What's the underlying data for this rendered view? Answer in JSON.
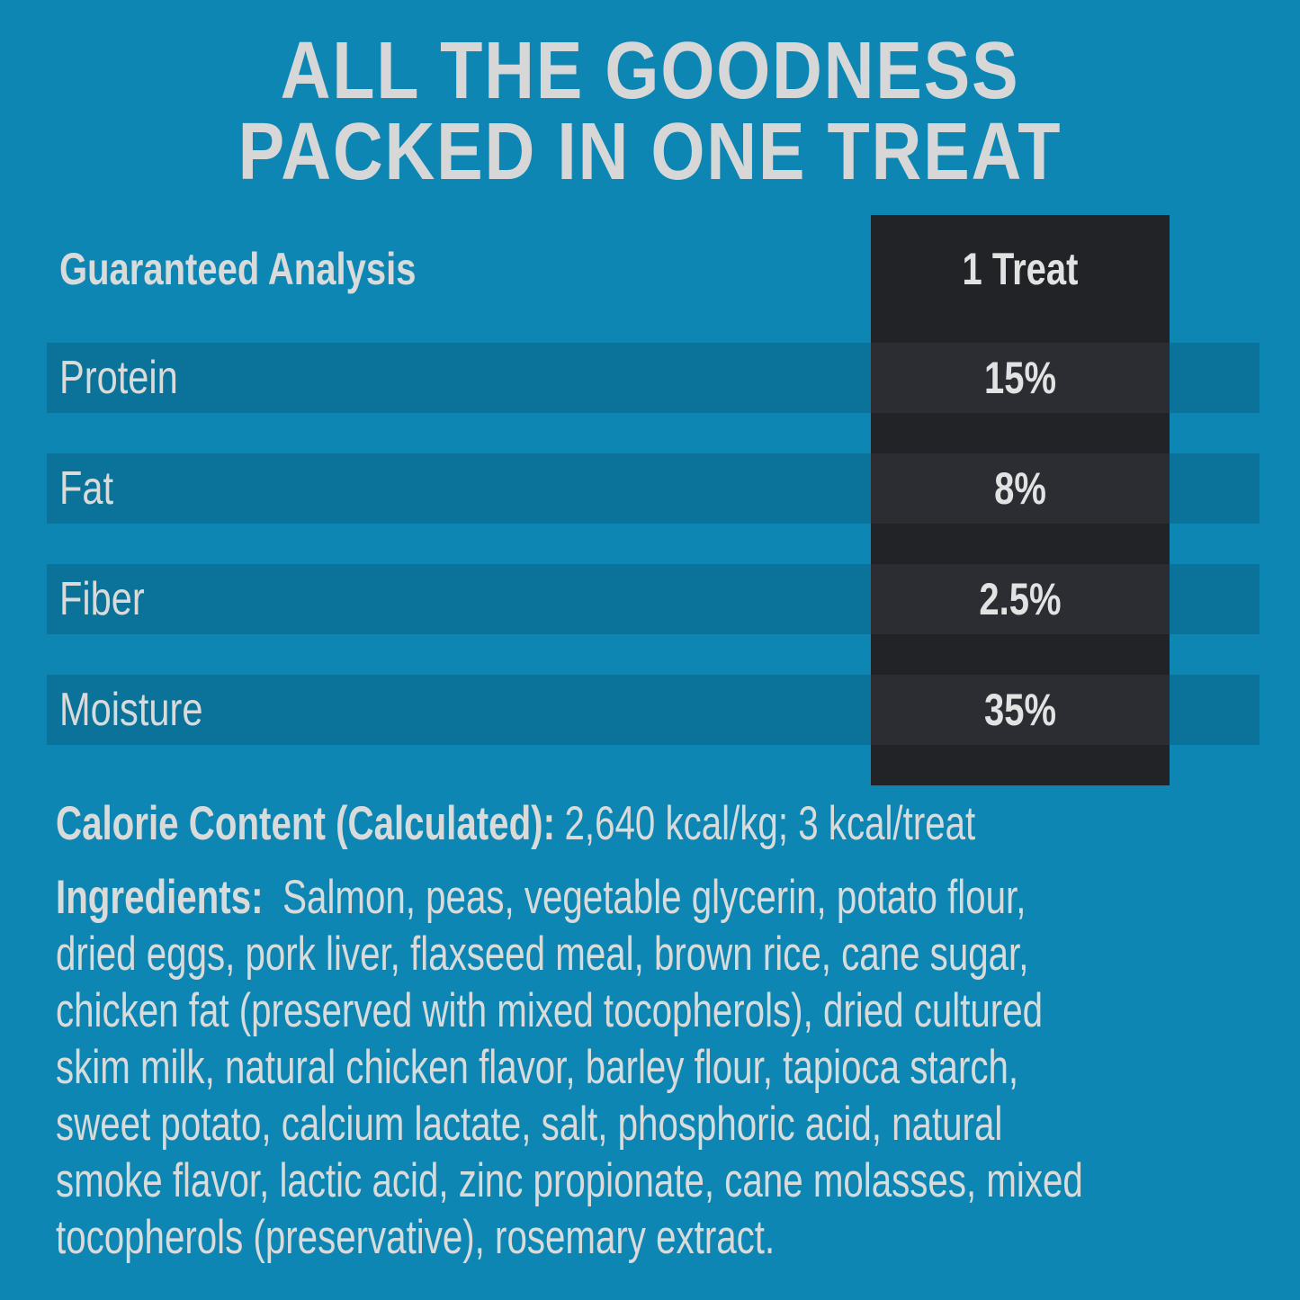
{
  "colors": {
    "background": "#0e86b3",
    "stripe": "#0b7299",
    "panel": "#212327",
    "panel_band": "#2b2d32",
    "text": "#d9dbdb",
    "title_text": "#d6d7d6",
    "value_text": "#e1e2e2"
  },
  "title": {
    "line1": "ALL THE GOODNESS",
    "line2": "PACKED IN ONE TREAT"
  },
  "analysis_table": {
    "header": {
      "label": "Guaranteed Analysis",
      "value_column": "1 Treat"
    },
    "rows": [
      {
        "label": "Protein",
        "value": "15%"
      },
      {
        "label": "Fat",
        "value": "8%"
      },
      {
        "label": "Fiber",
        "value": "2.5%"
      },
      {
        "label": "Moisture",
        "value": "35%"
      }
    ]
  },
  "calorie_content": {
    "label": "Calorie Content (Calculated):",
    "value": "2,640 kcal/kg; 3 kcal/treat"
  },
  "ingredients": {
    "label": "Ingredients:",
    "first_line_rest": "Salmon, peas, vegetable glycerin, potato flour,",
    "continuation_lines": [
      "dried eggs, pork liver, flaxseed meal, brown rice, cane sugar,",
      "chicken fat (preserved with mixed tocopherols), dried cultured",
      "skim milk, natural chicken flavor, barley flour, tapioca starch,",
      "sweet potato, calcium lactate, salt, phosphoric acid, natural",
      "smoke flavor, lactic acid, zinc propionate, cane molasses, mixed",
      "tocopherols (preservative), rosemary extract."
    ]
  }
}
